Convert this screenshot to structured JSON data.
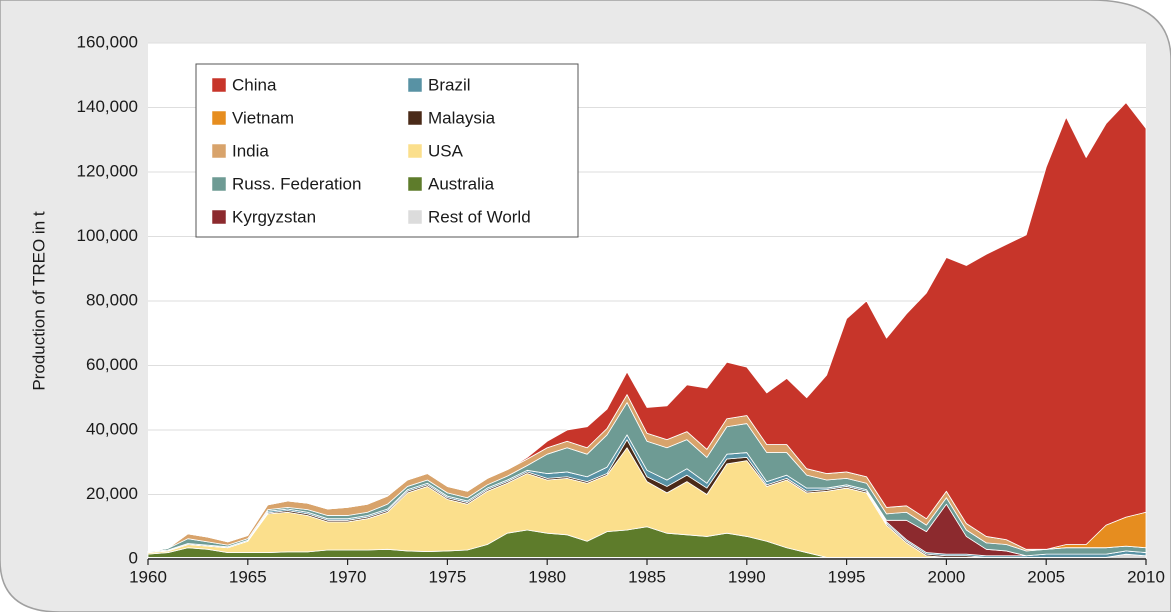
{
  "chart_data": {
    "type": "stacked_area",
    "y_label": "Production of TREO in t",
    "x": [
      1960,
      1961,
      1962,
      1963,
      1964,
      1965,
      1966,
      1967,
      1968,
      1969,
      1970,
      1971,
      1972,
      1973,
      1974,
      1975,
      1976,
      1977,
      1978,
      1979,
      1980,
      1981,
      1982,
      1983,
      1984,
      1985,
      1986,
      1987,
      1988,
      1989,
      1990,
      1991,
      1992,
      1993,
      1994,
      1995,
      1996,
      1997,
      1998,
      1999,
      2000,
      2001,
      2002,
      2003,
      2004,
      2005,
      2006,
      2007,
      2008,
      2009,
      2010
    ],
    "xlim": [
      1960,
      2010
    ],
    "xticks": [
      1960,
      1965,
      1970,
      1975,
      1980,
      1985,
      1990,
      1995,
      2000,
      2005,
      2010
    ],
    "ylim": [
      0,
      160000
    ],
    "yticks": [
      0,
      {
        "value": 20000,
        "label": "20,000"
      },
      {
        "value": 40000,
        "label": "40,000"
      },
      {
        "value": 60000,
        "label": "60,000"
      },
      {
        "value": 80000,
        "label": "80,000"
      },
      {
        "value": 100000,
        "label": "100,000"
      },
      {
        "value": 120000,
        "label": "120,000"
      },
      {
        "value": 140000,
        "label": "140,000"
      },
      {
        "value": 160000,
        "label": "160,000"
      }
    ],
    "grid": true,
    "legend": "upper left",
    "series": [
      {
        "name": "China",
        "color": "#c7352a",
        "values": [
          0,
          0,
          0,
          0,
          0,
          0,
          0,
          0,
          0,
          0,
          0,
          0,
          0,
          0,
          0,
          0,
          0,
          0,
          0,
          500,
          2000,
          3500,
          6500,
          6000,
          7000,
          8000,
          10500,
          14500,
          19000,
          17500,
          15000,
          16000,
          20500,
          22000,
          30500,
          47500,
          54500,
          52500,
          59500,
          70000,
          72500,
          80000,
          87500,
          91500,
          97500,
          118500,
          132500,
          120000,
          124500,
          128500,
          119000
        ]
      },
      {
        "name": "Vietnam",
        "color": "#e68d1f",
        "values": [
          0,
          0,
          0,
          0,
          0,
          0,
          0,
          0,
          0,
          0,
          0,
          0,
          0,
          0,
          0,
          0,
          0,
          0,
          0,
          0,
          0,
          0,
          0,
          0,
          0,
          0,
          0,
          0,
          0,
          0,
          0,
          0,
          0,
          0,
          0,
          0,
          0,
          0,
          0,
          0,
          0,
          0,
          0,
          0,
          0,
          0,
          1000,
          1000,
          7000,
          9000,
          11000
        ]
      },
      {
        "name": "India",
        "color": "#d8a36b",
        "values": [
          0,
          0,
          1500,
          1500,
          1000,
          1000,
          1500,
          2000,
          2000,
          2000,
          2500,
          2500,
          2500,
          2000,
          2000,
          2000,
          2000,
          2000,
          2000,
          2000,
          2000,
          2000,
          2000,
          2000,
          2500,
          2500,
          2500,
          2500,
          2500,
          2500,
          2500,
          2500,
          2500,
          2000,
          2000,
          2000,
          2000,
          2000,
          2000,
          2000,
          2000,
          2000,
          2000,
          1500,
          500,
          0,
          0,
          0,
          0,
          0,
          0
        ]
      },
      {
        "name": "Russ. Federation",
        "color": "#6e9b94",
        "values": [
          0,
          500,
          1500,
          1000,
          500,
          500,
          500,
          500,
          800,
          1000,
          1000,
          1000,
          1500,
          1000,
          1000,
          1000,
          1000,
          1000,
          1200,
          1500,
          6000,
          7500,
          7000,
          10000,
          10000,
          9000,
          10000,
          9000,
          8000,
          8500,
          9000,
          9000,
          7000,
          4000,
          2500,
          2000,
          2000,
          2000,
          2500,
          2000,
          2000,
          2000,
          2000,
          2000,
          1500,
          1500,
          2000,
          2000,
          2000,
          1500,
          1500
        ]
      },
      {
        "name": "Kyrgyzstan",
        "color": "#8c2a2e",
        "values": [
          0,
          0,
          0,
          0,
          0,
          0,
          0,
          0,
          0,
          0,
          0,
          0,
          0,
          0,
          0,
          0,
          0,
          0,
          0,
          0,
          0,
          0,
          0,
          0,
          0,
          0,
          0,
          0,
          0,
          0,
          0,
          0,
          0,
          0,
          0,
          0,
          0,
          500,
          6000,
          6500,
          15500,
          5500,
          2000,
          1500,
          0,
          0,
          0,
          0,
          0,
          0,
          0
        ]
      },
      {
        "name": "Brazil",
        "color": "#5892a4",
        "values": [
          300,
          300,
          300,
          300,
          300,
          300,
          500,
          500,
          500,
          500,
          500,
          500,
          500,
          500,
          500,
          500,
          500,
          500,
          500,
          500,
          1500,
          1500,
          1500,
          2000,
          1500,
          2000,
          2000,
          2000,
          1500,
          1500,
          1500,
          1000,
          1000,
          1000,
          500,
          500,
          500,
          500,
          500,
          500,
          500,
          500,
          500,
          500,
          500,
          1000,
          1000,
          1000,
          1000,
          1000,
          1000
        ]
      },
      {
        "name": "Malaysia",
        "color": "#4a2a18",
        "values": [
          0,
          0,
          0,
          0,
          0,
          0,
          300,
          500,
          500,
          500,
          500,
          500,
          500,
          500,
          500,
          500,
          500,
          500,
          500,
          500,
          500,
          500,
          500,
          500,
          2500,
          1500,
          2000,
          2000,
          2000,
          1500,
          1000,
          500,
          500,
          500,
          500,
          500,
          500,
          500,
          500,
          500,
          500,
          500,
          0,
          0,
          0,
          0,
          0,
          0,
          0,
          0,
          0
        ]
      },
      {
        "name": "USA",
        "color": "#fbdf8c",
        "values": [
          500,
          500,
          1000,
          1000,
          1500,
          3500,
          12000,
          12300,
          11300,
          8700,
          8700,
          9700,
          11500,
          18000,
          20200,
          16000,
          14200,
          16500,
          15500,
          17500,
          16500,
          17500,
          18000,
          17500,
          25500,
          14000,
          12500,
          16500,
          13000,
          21500,
          23500,
          17000,
          21000,
          18500,
          20500,
          21500,
          20000,
          10000,
          4500,
          500,
          0,
          0,
          0,
          0,
          0,
          0,
          0,
          0,
          0,
          0,
          0
        ]
      },
      {
        "name": "Australia",
        "color": "#5e7c2b",
        "values": [
          1000,
          1500,
          3000,
          2500,
          1500,
          1500,
          1500,
          1700,
          1700,
          2300,
          2300,
          2300,
          2500,
          2000,
          1800,
          2000,
          2300,
          4000,
          7500,
          8500,
          7500,
          7000,
          5000,
          8000,
          8500,
          9500,
          7500,
          7000,
          6500,
          7500,
          6500,
          5000,
          3000,
          1500,
          0,
          0,
          0,
          0,
          0,
          0,
          0,
          0,
          0,
          0,
          0,
          0,
          0,
          0,
          0,
          0,
          0
        ]
      },
      {
        "name": "Rest of World",
        "color": "#dcdcdc",
        "values": [
          500,
          500,
          500,
          500,
          500,
          500,
          500,
          500,
          500,
          500,
          500,
          500,
          500,
          500,
          500,
          500,
          500,
          500,
          500,
          500,
          500,
          500,
          500,
          500,
          500,
          500,
          500,
          500,
          500,
          500,
          500,
          500,
          500,
          500,
          500,
          500,
          500,
          500,
          500,
          500,
          500,
          500,
          500,
          500,
          500,
          500,
          500,
          500,
          500,
          1500,
          1000
        ]
      }
    ]
  }
}
